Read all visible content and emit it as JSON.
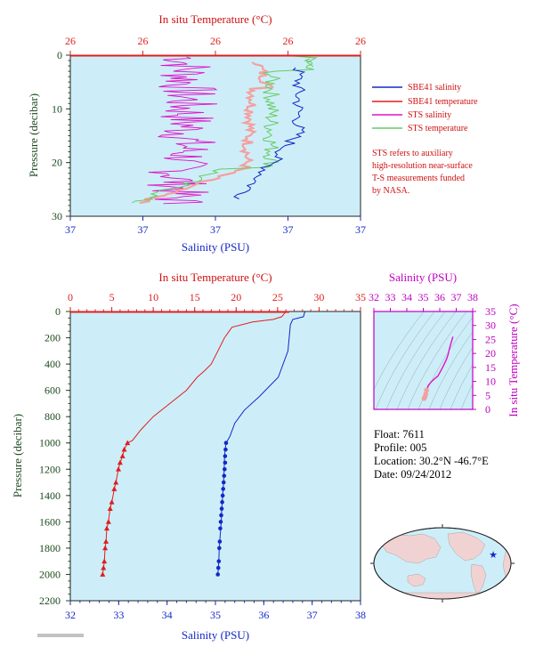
{
  "colors": {
    "salinity": "#1428c8",
    "temperature": "#e01e1e",
    "sts_salinity": "#e010c8",
    "sts_temperature": "#66cc66",
    "sts_temp_faint": "#f4a0a0",
    "ts_curve": "#e010c8",
    "plot_bg": "#cdeef8",
    "axis_left": "#1e4a1e",
    "magenta_text": "#c000c0"
  },
  "top_panel": {
    "title": "In situ Temperature (°C)",
    "xlabel": "Salinity (PSU)",
    "ylabel": "Pressure (decibar)",
    "temp_ticks": [
      "26",
      "26",
      "26",
      "26",
      "26"
    ],
    "sal_ticks": [
      "37",
      "37",
      "37",
      "37",
      "37"
    ],
    "p_ticks": [
      "0",
      "10",
      "20",
      "30"
    ],
    "legend": [
      "SBE41 salinity",
      "SBE41 temperature",
      "STS salinity",
      "STS temperature"
    ],
    "note": [
      "STS refers to auxiliary",
      "high-resolution near-surface",
      "T-S measurements funded",
      "by NASA."
    ]
  },
  "main_panel": {
    "title": "In situ Temperature (°C)",
    "xlabel": "Salinity (PSU)",
    "ylabel": "Pressure (decibar)",
    "temp_ticks": [
      "0",
      "5",
      "10",
      "15",
      "20",
      "25",
      "30",
      "35"
    ],
    "sal_ticks": [
      "32",
      "33",
      "34",
      "35",
      "36",
      "37",
      "38"
    ],
    "p_ticks": [
      "0",
      "200",
      "400",
      "600",
      "800",
      "1000",
      "1200",
      "1400",
      "1600",
      "1800",
      "2000",
      "2200"
    ]
  },
  "ts_panel": {
    "title": "Salinity (PSU)",
    "ylabel": "In situ Temperature (°C)",
    "sal_ticks": [
      "32",
      "33",
      "34",
      "35",
      "36",
      "37",
      "38"
    ],
    "t_ticks": [
      "0",
      "5",
      "10",
      "15",
      "20",
      "25",
      "30",
      "35"
    ]
  },
  "info": {
    "float": "Float:  7611",
    "profile": "Profile:  005",
    "location": "Location:  30.2°N  -46.7°E",
    "date": "Date:  09/24/2012"
  },
  "chart_data": [
    {
      "type": "line",
      "name": "main-profile",
      "ylim": [
        2200,
        0
      ],
      "temp_lim": [
        0,
        35
      ],
      "sal_lim": [
        32,
        38
      ],
      "series": [
        {
          "name": "SBE41 temperature",
          "x": [
            26.0,
            25.5,
            24.5,
            22.0,
            19.5,
            18.6,
            17.8,
            17.0,
            16.2,
            15.3,
            14.0,
            12.0,
            10.0,
            8.5,
            7.5,
            6.9,
            6.5,
            6.3,
            6.0,
            5.8,
            5.5,
            5.3,
            5.0,
            4.8,
            4.6,
            4.4,
            4.3,
            4.2,
            4.1,
            4.0,
            3.9
          ],
          "y": [
            0,
            40,
            60,
            80,
            120,
            200,
            300,
            400,
            450,
            500,
            600,
            700,
            800,
            900,
            980,
            1000,
            1050,
            1100,
            1150,
            1200,
            1300,
            1350,
            1450,
            1500,
            1600,
            1650,
            1750,
            1800,
            1900,
            1950,
            2000
          ]
        },
        {
          "name": "SBE41 salinity",
          "x": [
            36.85,
            36.82,
            36.6,
            36.55,
            36.5,
            36.3,
            35.9,
            35.6,
            35.4,
            35.3,
            35.22,
            35.2,
            35.19,
            35.18,
            35.17,
            35.15,
            35.13,
            35.12,
            35.1,
            35.09,
            35.08,
            35.07,
            35.06,
            35.05
          ],
          "y": [
            0,
            40,
            60,
            100,
            300,
            500,
            650,
            750,
            850,
            950,
            1000,
            1050,
            1100,
            1200,
            1300,
            1400,
            1500,
            1600,
            1700,
            1750,
            1800,
            1900,
            1950,
            2000
          ]
        }
      ],
      "markers_temp": {
        "x": [
          6.9,
          6.5,
          6.3,
          6.0,
          5.8,
          5.5,
          5.3,
          5.0,
          4.8,
          4.6,
          4.4,
          4.3,
          4.2,
          4.1,
          4.0,
          3.9
        ],
        "y": [
          1000,
          1050,
          1100,
          1150,
          1200,
          1300,
          1350,
          1450,
          1500,
          1600,
          1650,
          1750,
          1800,
          1900,
          1950,
          2000
        ]
      },
      "markers_sal": {
        "x": [
          35.22,
          35.21,
          35.2,
          35.2,
          35.19,
          35.18,
          35.17,
          35.16,
          35.15,
          35.14,
          35.13,
          35.12,
          35.11,
          35.1,
          35.09,
          35.08,
          35.07,
          35.06,
          35.05
        ],
        "y": [
          1000,
          1050,
          1100,
          1150,
          1200,
          1250,
          1300,
          1350,
          1400,
          1450,
          1500,
          1550,
          1600,
          1650,
          1750,
          1800,
          1900,
          1950,
          2000
        ]
      }
    },
    {
      "type": "line",
      "name": "ts-diagram",
      "xlim": [
        32,
        38
      ],
      "ylim": [
        0,
        35
      ],
      "series": [
        {
          "name": "T-S curve",
          "x": [
            35.05,
            35.1,
            35.15,
            35.2,
            35.3,
            35.5,
            35.9,
            36.2,
            36.4,
            36.5,
            36.6,
            36.8
          ],
          "y": [
            3.9,
            4.5,
            5.5,
            6.9,
            8.5,
            10.0,
            12.0,
            15.3,
            17.8,
            19.5,
            22.0,
            26.0
          ]
        }
      ]
    }
  ]
}
